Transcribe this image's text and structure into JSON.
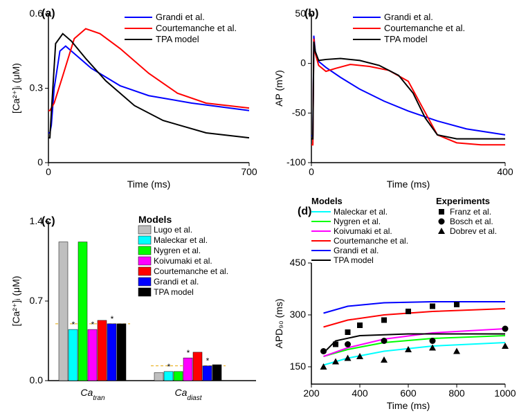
{
  "panelA": {
    "type": "line",
    "label": "(a)",
    "label_fontsize": 16,
    "xlim": [
      0,
      700
    ],
    "ylim": [
      0,
      0.6
    ],
    "xticks": [
      0,
      700
    ],
    "yticks": [
      0.0,
      0.3,
      0.6
    ],
    "xlabel": "Time (ms)",
    "ylabel": "[Ca²⁺]ᵢ (μM)",
    "fontsize": 14,
    "axis_color": "#000000",
    "line_width": 2,
    "legend": [
      {
        "label": "Grandi et al.",
        "color": "#0000ff"
      },
      {
        "label": "Courtemanche et al.",
        "color": "#ff0000"
      },
      {
        "label": "TPA model",
        "color": "#000000"
      }
    ],
    "series": [
      {
        "color": "#0000ff",
        "x": [
          0,
          5,
          10,
          20,
          40,
          60,
          90,
          150,
          250,
          350,
          500,
          700
        ],
        "y": [
          0.12,
          0.12,
          0.15,
          0.3,
          0.45,
          0.47,
          0.44,
          0.38,
          0.31,
          0.27,
          0.24,
          0.21
        ]
      },
      {
        "color": "#ff0000",
        "x": [
          0,
          5,
          20,
          50,
          90,
          130,
          180,
          250,
          350,
          450,
          550,
          700
        ],
        "y": [
          0.21,
          0.21,
          0.24,
          0.35,
          0.5,
          0.54,
          0.52,
          0.46,
          0.36,
          0.28,
          0.24,
          0.22
        ]
      },
      {
        "color": "#000000",
        "x": [
          0,
          5,
          10,
          25,
          50,
          80,
          130,
          200,
          300,
          400,
          550,
          700
        ],
        "y": [
          0.1,
          0.1,
          0.2,
          0.48,
          0.52,
          0.49,
          0.42,
          0.33,
          0.23,
          0.17,
          0.12,
          0.1
        ]
      }
    ]
  },
  "panelB": {
    "type": "line",
    "label": "(b)",
    "label_fontsize": 16,
    "xlim": [
      0,
      400
    ],
    "ylim": [
      -100,
      50
    ],
    "xticks": [
      0,
      400
    ],
    "yticks": [
      -100,
      -50,
      0,
      50
    ],
    "xlabel": "Time (ms)",
    "ylabel": "AP (mV)",
    "fontsize": 14,
    "axis_color": "#000000",
    "line_width": 2,
    "legend": [
      {
        "label": "Grandi et al.",
        "color": "#0000ff"
      },
      {
        "label": "Courtemanche et al.",
        "color": "#ff0000"
      },
      {
        "label": "TPA model",
        "color": "#000000"
      }
    ],
    "series": [
      {
        "color": "#0000ff",
        "x": [
          0,
          3,
          5,
          8,
          15,
          30,
          60,
          100,
          150,
          200,
          260,
          320,
          400
        ],
        "y": [
          -73,
          -73,
          28,
          12,
          2,
          -4,
          -14,
          -26,
          -38,
          -48,
          -58,
          -66,
          -72
        ]
      },
      {
        "color": "#ff0000",
        "x": [
          0,
          3,
          5,
          8,
          15,
          30,
          50,
          80,
          120,
          160,
          200,
          230,
          260,
          300,
          350,
          400
        ],
        "y": [
          -82,
          -82,
          25,
          10,
          -2,
          -8,
          -5,
          -1,
          -3,
          -7,
          -18,
          -45,
          -72,
          -80,
          -82,
          -82
        ]
      },
      {
        "color": "#000000",
        "x": [
          0,
          3,
          5,
          8,
          15,
          30,
          60,
          100,
          140,
          180,
          210,
          235,
          260,
          300,
          350,
          400
        ],
        "y": [
          -76,
          -76,
          22,
          12,
          3,
          4,
          5,
          3,
          -2,
          -12,
          -30,
          -55,
          -72,
          -76,
          -76,
          -76
        ]
      }
    ]
  },
  "panelC": {
    "type": "bar",
    "label": "(c)",
    "label_fontsize": 16,
    "ylim": [
      0,
      1.4
    ],
    "yticks": [
      0.0,
      0.7,
      1.4
    ],
    "ylabel": "[Ca²⁺]ᵢ (μM)",
    "fontsize": 14,
    "axis_color": "#000000",
    "group_labels": [
      "Ca_tran",
      "Ca_diast"
    ],
    "ref_lines": [
      0.5,
      0.13
    ],
    "ref_color": "#e6a700",
    "ref_dash": "4,3",
    "legend_title": "Models",
    "bars": [
      {
        "label": "Lugo et al.",
        "color": "#bfbfbf",
        "tran": 1.22,
        "diast": 0.07,
        "star": false
      },
      {
        "label": "Maleckar et al.",
        "color": "#00ffff",
        "tran": 0.45,
        "diast": 0.08,
        "star": true,
        "tran_star": true,
        "diast_star": true
      },
      {
        "label": "Nygren et al.",
        "color": "#00ff00",
        "tran": 1.22,
        "diast": 0.08,
        "star": false
      },
      {
        "label": "Koivumaki et al.",
        "color": "#ff00ff",
        "tran": 0.45,
        "diast": 0.2,
        "tran_star": true,
        "diast_star": true
      },
      {
        "label": "Courtemanche et al.",
        "color": "#ff0000",
        "tran": 0.53,
        "diast": 0.25,
        "star": false
      },
      {
        "label": "Grandi et al.",
        "color": "#0000ff",
        "tran": 0.5,
        "diast": 0.13,
        "tran_star": true,
        "diast_star": true
      },
      {
        "label": "TPA model",
        "color": "#000000",
        "tran": 0.5,
        "diast": 0.14,
        "star": false
      }
    ]
  },
  "panelD": {
    "type": "line+scatter",
    "label": "(d)",
    "label_fontsize": 16,
    "xlim": [
      200,
      1000
    ],
    "ylim": [
      100,
      450
    ],
    "xticks": [
      200,
      400,
      600,
      800,
      1000
    ],
    "yticks": [
      150,
      300,
      450
    ],
    "xlabel": "Time (ms)",
    "ylabel": "APD₉₀ (ms)",
    "fontsize": 14,
    "axis_color": "#000000",
    "line_width": 2,
    "models_title": "Models",
    "experiments_title": "Experiments",
    "lines": [
      {
        "label": "Maleckar et al.",
        "color": "#00ffff",
        "x": [
          250,
          350,
          500,
          700,
          1000
        ],
        "y": [
          155,
          175,
          195,
          210,
          220
        ]
      },
      {
        "label": "Nygren et al.",
        "color": "#00ff00",
        "x": [
          250,
          350,
          500,
          700,
          1000
        ],
        "y": [
          180,
          200,
          220,
          232,
          240
        ]
      },
      {
        "label": "Koivumaki et al.",
        "color": "#ff00ff",
        "x": [
          250,
          350,
          500,
          700,
          1000
        ],
        "y": [
          180,
          205,
          230,
          248,
          260
        ]
      },
      {
        "label": "Courtemanche et al.",
        "color": "#ff0000",
        "x": [
          250,
          350,
          500,
          700,
          1000
        ],
        "y": [
          265,
          285,
          300,
          310,
          318
        ]
      },
      {
        "label": "Grandi et al.",
        "color": "#0000ff",
        "x": [
          250,
          350,
          500,
          700,
          1000
        ],
        "y": [
          305,
          325,
          335,
          338,
          338
        ]
      },
      {
        "label": "TPA model",
        "color": "#000000",
        "x": [
          250,
          300,
          400,
          600,
          1000
        ],
        "y": [
          190,
          225,
          240,
          245,
          245
        ]
      }
    ],
    "experiments": [
      {
        "label": "Franz et al.",
        "marker": "square",
        "x": [
          300,
          350,
          400,
          500,
          600,
          700,
          800
        ],
        "y": [
          215,
          250,
          270,
          285,
          310,
          325,
          330
        ]
      },
      {
        "label": "Bosch et al.",
        "marker": "circle",
        "x": [
          250,
          350,
          500,
          700,
          1000
        ],
        "y": [
          195,
          215,
          225,
          225,
          260
        ]
      },
      {
        "label": "Dobrev et al.",
        "marker": "triangle",
        "x": [
          250,
          300,
          350,
          400,
          500,
          600,
          700,
          800,
          1000
        ],
        "y": [
          150,
          165,
          175,
          180,
          170,
          200,
          205,
          195,
          210
        ]
      }
    ]
  }
}
